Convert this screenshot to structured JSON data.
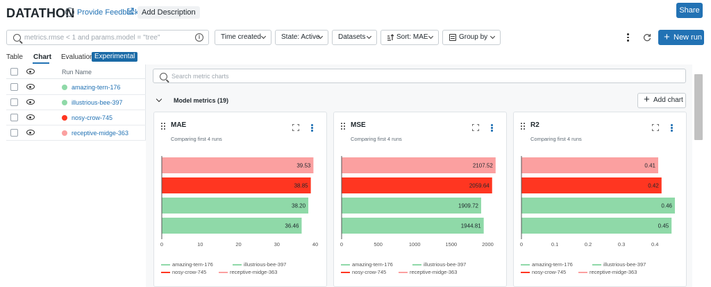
{
  "header": {
    "title": "DATATHON",
    "feedback_label": "Provide Feedback",
    "add_description_label": "Add Description",
    "share_label": "Share"
  },
  "toolbar": {
    "search_placeholder": "metrics.rmse < 1 and params.model = \"tree\"",
    "time_created_label": "Time created",
    "state_label": "State: Active",
    "datasets_label": "Datasets",
    "sort_label": "Sort: MAE",
    "group_label": "Group by",
    "new_run_label": "New run"
  },
  "tabs": [
    {
      "label": "Table",
      "active": false
    },
    {
      "label": "Chart",
      "active": true
    },
    {
      "label": "Evaluation",
      "active": false
    }
  ],
  "experimental_badge": "Experimental",
  "runs_table": {
    "column_header": "Run Name",
    "rows": [
      {
        "name": "amazing-tern-176",
        "color": "#8fd9a8"
      },
      {
        "name": "illustrious-bee-397",
        "color": "#8fd9a8"
      },
      {
        "name": "nosy-crow-745",
        "color": "#ff3621"
      },
      {
        "name": "receptive-midge-363",
        "color": "#fba0a0"
      }
    ]
  },
  "charts_panel": {
    "search_placeholder": "Search metric charts",
    "section_title": "Model metrics (19)",
    "add_chart_label": "Add chart"
  },
  "legend": [
    {
      "name": "amazing-tern-176",
      "color": "#8fd9a8"
    },
    {
      "name": "illustrious-bee-397",
      "color": "#8fd9a8"
    },
    {
      "name": "nosy-crow-745",
      "color": "#ff3621"
    },
    {
      "name": "receptive-midge-363",
      "color": "#fba0a0"
    }
  ],
  "chart_data": [
    {
      "type": "bar",
      "orientation": "horizontal",
      "title": "MAE",
      "subtitle": "Comparing first 4 runs",
      "categories": [
        "receptive-midge-363",
        "nosy-crow-745",
        "amazing-tern-176",
        "illustrious-bee-397"
      ],
      "values": [
        39.53,
        38.85,
        38.2,
        36.46
      ],
      "labels": [
        "39.53",
        "38.85",
        "38.20",
        "36.46"
      ],
      "colors": [
        "#fba0a0",
        "#ff3621",
        "#8fd9a8",
        "#8fd9a8"
      ],
      "xlim": [
        0,
        40
      ],
      "ticks": [
        0,
        10,
        20,
        30,
        40
      ],
      "tick_labels": [
        "0",
        "10",
        "20",
        "30",
        "40"
      ]
    },
    {
      "type": "bar",
      "orientation": "horizontal",
      "title": "MSE",
      "subtitle": "Comparing first 4 runs",
      "categories": [
        "receptive-midge-363",
        "nosy-crow-745",
        "amazing-tern-176",
        "illustrious-bee-397"
      ],
      "values": [
        2107.52,
        2059.64,
        1909.72,
        1944.81
      ],
      "labels": [
        "2107.52",
        "2059.64",
        "1909.72",
        "1944.81"
      ],
      "colors": [
        "#fba0a0",
        "#ff3621",
        "#8fd9a8",
        "#8fd9a8"
      ],
      "xlim": [
        0,
        2100
      ],
      "ticks": [
        0,
        500,
        1000,
        1500,
        2000
      ],
      "tick_labels": [
        "0",
        "500",
        "1000",
        "1500",
        "2000"
      ]
    },
    {
      "type": "bar",
      "orientation": "horizontal",
      "title": "R2",
      "subtitle": "Comparing first 4 runs",
      "categories": [
        "receptive-midge-363",
        "nosy-crow-745",
        "amazing-tern-176",
        "illustrious-bee-397"
      ],
      "values": [
        0.41,
        0.42,
        0.46,
        0.45
      ],
      "labels": [
        "0.41",
        "0.42",
        "0.46",
        "0.45"
      ],
      "colors": [
        "#fba0a0",
        "#ff3621",
        "#8fd9a8",
        "#8fd9a8"
      ],
      "xlim": [
        0,
        0.46
      ],
      "ticks": [
        0,
        0.1,
        0.2,
        0.3,
        0.4
      ],
      "tick_labels": [
        "0",
        "0.1",
        "0.2",
        "0.3",
        "0.4"
      ]
    }
  ]
}
